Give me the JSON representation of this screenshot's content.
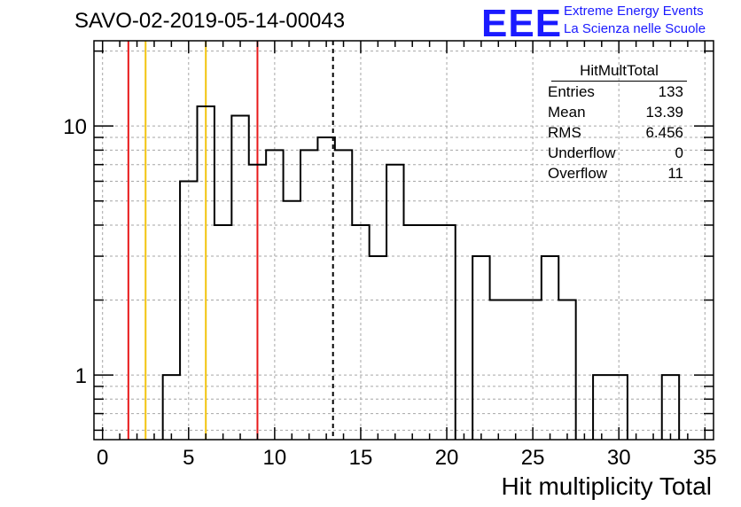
{
  "title": "SAVO-02-2019-05-14-00043",
  "logo": {
    "mark": "EEE",
    "line1": "Extreme Energy Events",
    "line2": "La Scienza nelle Scuole",
    "color": "#1a1aff"
  },
  "stats": {
    "name": "HitMultTotal",
    "rows": [
      {
        "label": "Entries",
        "value": "133"
      },
      {
        "label": "Mean",
        "value": "13.39"
      },
      {
        "label": "RMS",
        "value": "6.456"
      },
      {
        "label": "Underflow",
        "value": "0"
      },
      {
        "label": "Overflow",
        "value": "11"
      }
    ]
  },
  "chart_data": {
    "type": "histogram",
    "xlabel": "Hit multiplicity Total",
    "ylabel": "",
    "xlim": [
      -0.5,
      35.5
    ],
    "ylim": [
      0.55,
      22
    ],
    "y_scale": "log",
    "grid": true,
    "bin_width": 1,
    "bin_edges_start": -0.5,
    "bin_values": [
      0,
      0,
      0,
      0,
      1,
      6,
      12,
      4,
      11,
      7,
      8,
      5,
      8,
      9,
      8,
      4,
      3,
      7,
      4,
      4,
      4,
      0,
      3,
      2,
      2,
      2,
      3,
      2,
      0,
      1,
      1,
      0,
      0,
      1,
      0
    ],
    "x_ticks": [
      0,
      5,
      10,
      15,
      20,
      25,
      30,
      35
    ],
    "y_ticks": [
      1,
      10
    ],
    "vertical_lines": [
      {
        "x": 1.5,
        "color": "#e8191b",
        "style": "solid"
      },
      {
        "x": 2.5,
        "color": "#f2c40f",
        "style": "solid"
      },
      {
        "x": 6.0,
        "color": "#f2c40f",
        "style": "solid"
      },
      {
        "x": 9.0,
        "color": "#e8191b",
        "style": "solid"
      },
      {
        "x": 13.39,
        "color": "#000000",
        "style": "dashed"
      }
    ]
  }
}
